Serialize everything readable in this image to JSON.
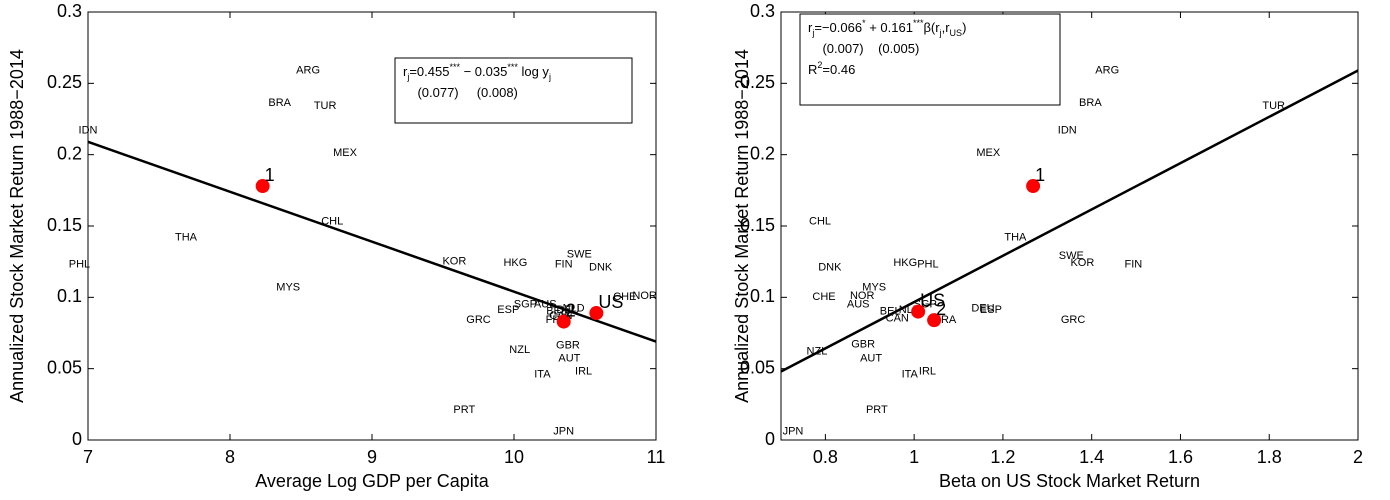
{
  "chart_data": [
    {
      "type": "scatter",
      "x_label": "Average Log GDP per Capita",
      "y_label": "Annualized Stock Market Return 1988−2014",
      "xlim": [
        7,
        11
      ],
      "ylim": [
        0,
        0.3
      ],
      "xticks": [
        7,
        8,
        9,
        10,
        11
      ],
      "yticks": [
        0,
        0.05,
        0.1,
        0.15,
        0.2,
        0.25,
        0.3
      ],
      "points": {
        "color": "#0000ff",
        "labels": [
          "ARG",
          "BRA",
          "TUR",
          "IDN",
          "MEX",
          "CHL",
          "THA",
          "PHL",
          "MYS",
          "KOR",
          "HKG",
          "FIN",
          "SWE",
          "DNK",
          "CHE",
          "NOR",
          "SGP",
          "AUS",
          "ESP",
          "GRC",
          "BEL",
          "NLD",
          "DEU",
          "FRA",
          "CAN",
          "NZL",
          "GBR",
          "AUT",
          "ITA",
          "IRL",
          "PRT",
          "JPN"
        ],
        "x": [
          8.55,
          8.35,
          8.67,
          7.0,
          8.81,
          8.72,
          7.69,
          6.94,
          8.41,
          9.58,
          10.01,
          10.35,
          10.46,
          10.61,
          10.78,
          10.92,
          10.08,
          10.22,
          9.96,
          9.75,
          10.3,
          10.42,
          10.38,
          10.3,
          10.33,
          10.04,
          10.38,
          10.39,
          10.2,
          10.49,
          9.65,
          10.35
        ],
        "values": [
          0.259,
          0.236,
          0.234,
          0.217,
          0.201,
          0.153,
          0.142,
          0.123,
          0.107,
          0.125,
          0.124,
          0.123,
          0.13,
          0.121,
          0.1,
          0.101,
          0.095,
          0.095,
          0.091,
          0.084,
          0.09,
          0.092,
          0.091,
          0.084,
          0.087,
          0.063,
          0.066,
          0.057,
          0.046,
          0.048,
          0.021,
          0.006
        ]
      },
      "highlight": {
        "color": "#ff0000",
        "labels": [
          "1",
          "2",
          "US"
        ],
        "x": [
          8.23,
          10.35,
          10.58
        ],
        "values": [
          0.178,
          0.083,
          0.089
        ]
      },
      "fit_line": {
        "color": "#000000",
        "x": [
          7,
          11
        ],
        "values": [
          0.209,
          0.069
        ]
      },
      "annotation": [
        [
          {
            "text": "r"
          },
          {
            "text": "j",
            "pos": "sub"
          },
          {
            "text": "=0.455"
          },
          {
            "text": "***",
            "pos": "sup"
          },
          {
            "text": " − 0.035"
          },
          {
            "text": "***",
            "pos": "sup"
          },
          {
            "text": " log y"
          },
          {
            "text": "j",
            "pos": "sub"
          }
        ],
        [
          {
            "text": "    (0.077)     (0.008)"
          }
        ]
      ]
    },
    {
      "type": "scatter",
      "x_label": "Beta on US Stock Market Return",
      "y_label": "Annualized Stock Market Return 1988−2014",
      "xlim": [
        0.7,
        2
      ],
      "ylim": [
        0,
        0.3
      ],
      "xticks": [
        0.8,
        1,
        1.2,
        1.4,
        1.6,
        1.8,
        2
      ],
      "yticks": [
        0,
        0.05,
        0.1,
        0.15,
        0.2,
        0.25,
        0.3
      ],
      "points": {
        "color": "#0000ff",
        "labels": [
          "ARG",
          "BRA",
          "IDN",
          "TUR",
          "MEX",
          "THA",
          "SWE",
          "KOR",
          "FIN",
          "CHL",
          "DNK",
          "HKG",
          "PHL",
          "MYS",
          "NOR",
          "CHE",
          "AUS",
          "BEL",
          "CAN",
          "SGP",
          "NLD",
          "DEU",
          "ESP",
          "FRA",
          "GRC",
          "GBR",
          "NZL",
          "AUT",
          "ITA",
          "IRL",
          "PRT",
          "JPN"
        ],
        "x": [
          1.435,
          1.397,
          1.345,
          1.81,
          1.167,
          1.228,
          1.354,
          1.379,
          1.494,
          0.788,
          0.81,
          0.98,
          1.031,
          0.91,
          0.883,
          0.797,
          0.874,
          0.946,
          0.962,
          1.025,
          0.99,
          1.155,
          1.173,
          1.07,
          1.358,
          0.885,
          0.781,
          0.903,
          0.99,
          1.03,
          0.916,
          0.727
        ],
        "values": [
          0.259,
          0.236,
          0.217,
          0.234,
          0.201,
          0.142,
          0.129,
          0.124,
          0.123,
          0.153,
          0.121,
          0.124,
          0.123,
          0.107,
          0.101,
          0.1,
          0.095,
          0.09,
          0.085,
          0.095,
          0.091,
          0.092,
          0.091,
          0.084,
          0.084,
          0.067,
          0.062,
          0.057,
          0.046,
          0.048,
          0.021,
          0.006
        ]
      },
      "highlight": {
        "color": "#ff0000",
        "labels": [
          "1",
          "US",
          "2"
        ],
        "x": [
          1.268,
          1.009,
          1.045
        ],
        "values": [
          0.178,
          0.09,
          0.084
        ]
      },
      "fit_line": {
        "color": "#000000",
        "x": [
          0.7,
          2
        ],
        "values": [
          0.048,
          0.259
        ]
      },
      "annotation": [
        [
          {
            "text": "r"
          },
          {
            "text": "j",
            "pos": "sub"
          },
          {
            "text": "=−0.066"
          },
          {
            "text": "*",
            "pos": "sup"
          },
          {
            "text": " + 0.161"
          },
          {
            "text": "***",
            "pos": "sup"
          },
          {
            "text": "β(r"
          },
          {
            "text": "j",
            "pos": "sub"
          },
          {
            "text": ",r"
          },
          {
            "text": "US",
            "pos": "sub"
          },
          {
            "text": ")"
          }
        ],
        [
          {
            "text": "    (0.007)    (0.005)"
          }
        ],
        [
          {
            "text": "R"
          },
          {
            "text": "2",
            "pos": "sup"
          },
          {
            "text": "=0.46"
          }
        ]
      ]
    }
  ]
}
